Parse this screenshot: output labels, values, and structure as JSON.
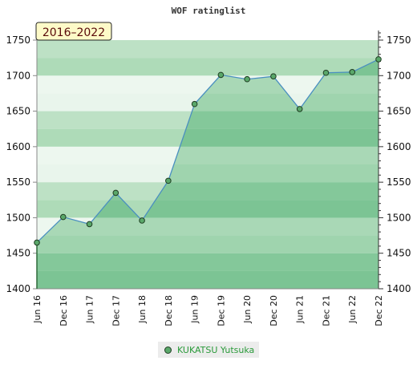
{
  "chart_data": {
    "type": "area",
    "title": "WOF ratinglist",
    "period_label": "2016–2022",
    "ylim": [
      1400,
      1750
    ],
    "y_ticks": [
      1400,
      1450,
      1500,
      1550,
      1600,
      1650,
      1700,
      1750
    ],
    "x_tick_labels": [
      "Jun 16",
      "Dec 16",
      "Jun 17",
      "Dec 17",
      "Jun 18",
      "Dec 18",
      "Jun 19",
      "Dec 19",
      "Jun 20",
      "Dec 20",
      "Jun 21",
      "Dec 21",
      "Jun 22",
      "Dec 22"
    ],
    "series": [
      {
        "name": "KUKATSU Yutsuka",
        "x": [
          "Jun 16",
          "Dec 16",
          "Jun 17",
          "Dec 17",
          "Jun 18",
          "Dec 18",
          "Jun 19",
          "Dec 19",
          "Jun 20",
          "Dec 20",
          "Jun 21",
          "Dec 21",
          "Jun 22",
          "Dec 22"
        ],
        "values": [
          1465,
          1501,
          1491,
          1535,
          1496,
          1552,
          1660,
          1701,
          1695,
          1699,
          1653,
          1704,
          1705,
          1723
        ]
      }
    ],
    "grid": true,
    "legend_position": "bottom",
    "colors": {
      "line": "#4a8fc0",
      "marker_fill": "#5aa86a",
      "marker_stroke": "#1e3d22",
      "band_dark": "#aedbb8",
      "band_light": "#e9f5ec",
      "area_dark": "#7cc494",
      "area_light": "#9fd4ae",
      "period_box": "#fdfac8"
    }
  }
}
